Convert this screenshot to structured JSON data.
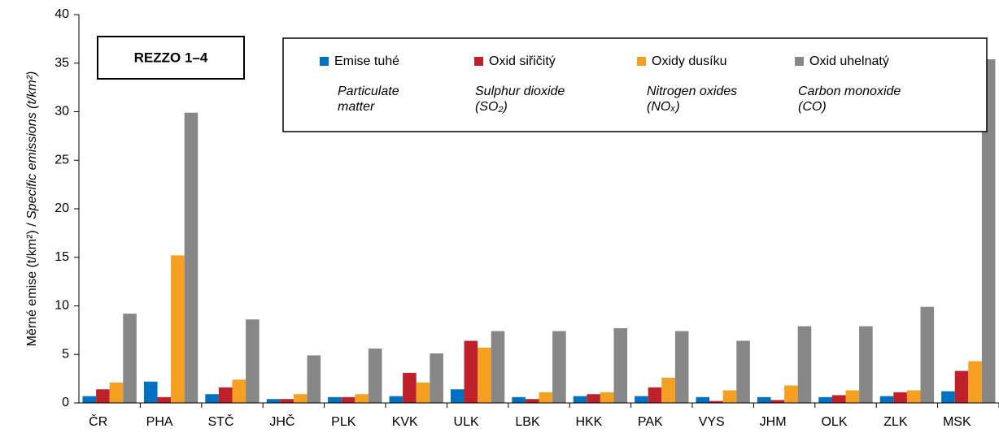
{
  "chart_data": {
    "type": "bar",
    "ylabel": [
      "Měrné emise  (t/km²) / ",
      "Specific emissions (t/km²)"
    ],
    "annotation": "REZZO 1–4",
    "categories": [
      "ČR",
      "PHA",
      "STČ",
      "JHČ",
      "PLK",
      "KVK",
      "ULK",
      "LBK",
      "HKK",
      "PAK",
      "VYS",
      "JHM",
      "OLK",
      "ZLK",
      "MSK"
    ],
    "series": [
      {
        "name": "Emise tuhé",
        "name_en": [
          "Particulate",
          "matter"
        ],
        "color": "#0070c0",
        "values": [
          0.7,
          2.2,
          0.9,
          0.4,
          0.6,
          0.7,
          1.4,
          0.6,
          0.7,
          0.7,
          0.6,
          0.6,
          0.6,
          0.7,
          1.2
        ]
      },
      {
        "name": "Oxid siřičitý",
        "name_en": [
          "Sulphur dioxide",
          "(SO₂)"
        ],
        "color": "#c0202a",
        "values": [
          1.4,
          0.6,
          1.6,
          0.4,
          0.6,
          3.1,
          6.4,
          0.4,
          0.9,
          1.6,
          0.2,
          0.3,
          0.8,
          1.1,
          3.3
        ]
      },
      {
        "name": "Oxidy dusíku",
        "name_en": [
          "Nitrogen oxides",
          "(NOₓ)"
        ],
        "color": "#f5a020",
        "values": [
          2.1,
          15.2,
          2.4,
          0.9,
          0.9,
          2.1,
          5.7,
          1.1,
          1.1,
          2.6,
          1.3,
          1.8,
          1.3,
          1.3,
          4.3
        ]
      },
      {
        "name": "Oxid uhelnatý",
        "name_en": [
          "Carbon monoxide",
          "(CO)"
        ],
        "color": "#878787",
        "values": [
          9.2,
          29.9,
          8.6,
          4.9,
          5.6,
          5.1,
          7.4,
          7.4,
          7.7,
          7.4,
          6.4,
          7.9,
          7.9,
          9.9,
          35.4
        ]
      }
    ],
    "ylim": [
      0,
      40
    ],
    "yticks": [
      0,
      5,
      10,
      15,
      20,
      25,
      30,
      35,
      40
    ]
  }
}
